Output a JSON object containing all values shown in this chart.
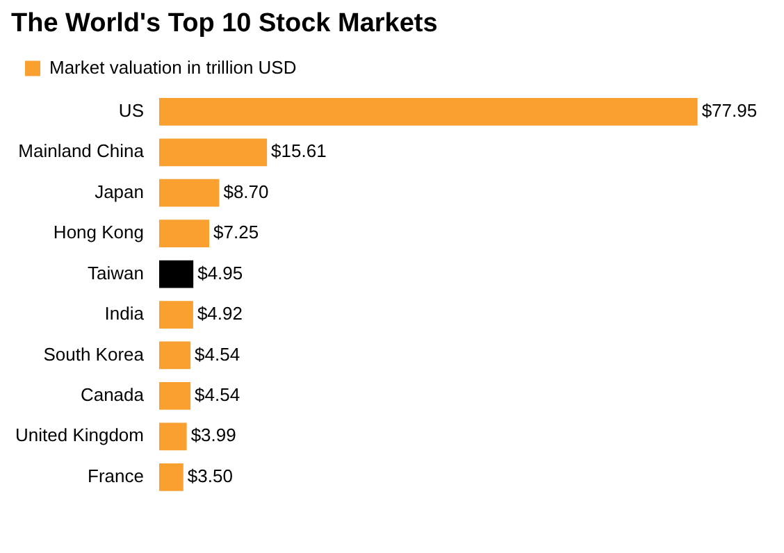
{
  "chart_data": {
    "type": "bar",
    "orientation": "horizontal",
    "title": "The World's Top 10 Stock Markets",
    "categories": [
      "US",
      "Mainland China",
      "Japan",
      "Hong Kong",
      "Taiwan",
      "India",
      "South Korea",
      "Canada",
      "United Kingdom",
      "France"
    ],
    "series": [
      {
        "name": "Market valuation in trillion USD",
        "color": "#f9a030",
        "colors": [
          "#f9a030",
          "#f9a030",
          "#f9a030",
          "#f9a030",
          "#000000",
          "#f9a030",
          "#f9a030",
          "#f9a030",
          "#f9a030",
          "#f9a030"
        ],
        "values": [
          77.95,
          15.61,
          8.7,
          7.25,
          4.95,
          4.92,
          4.54,
          4.54,
          3.99,
          3.5
        ],
        "value_labels": [
          "$77.95",
          "$15.61",
          "$8.70",
          "$7.25",
          "$4.95",
          "$4.92",
          "$4.54",
          "$4.54",
          "$3.99",
          "$3.50"
        ]
      }
    ],
    "legend": "top left"
  }
}
